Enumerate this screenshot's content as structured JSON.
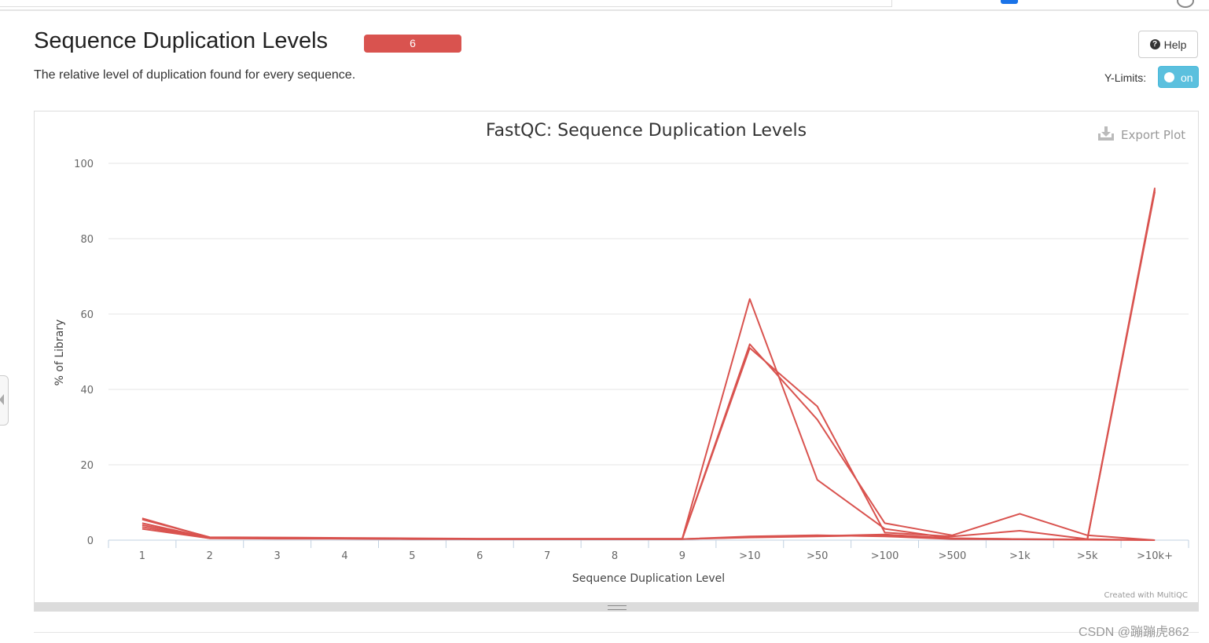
{
  "section": {
    "title": "Sequence Duplication Levels",
    "badge": "6",
    "description": "The relative level of duplication found for every sequence."
  },
  "controls": {
    "help_label": "Help",
    "ylimits_label": "Y-Limits:",
    "toggle_label": "on",
    "export_label": "Export Plot"
  },
  "footer": {
    "credit": "Created with MultiQC",
    "watermark": "CSDN @蹦蹦虎862"
  },
  "colors": {
    "series": "#d9534f",
    "badge": "#d9534f",
    "toggle": "#5bc0de"
  },
  "icons": [
    "help-icon",
    "export-icon",
    "resize-grip-icon",
    "collapse-arrow-icon"
  ],
  "chart_data": {
    "type": "line",
    "title": "FastQC: Sequence Duplication Levels",
    "xlabel": "Sequence Duplication Level",
    "ylabel": "% of Library",
    "categories": [
      "1",
      "2",
      "3",
      "4",
      "5",
      "6",
      "7",
      "8",
      "9",
      ">10",
      ">50",
      ">100",
      ">500",
      ">1k",
      ">5k",
      ">10k+"
    ],
    "yticks": [
      0,
      20,
      40,
      60,
      80,
      100
    ],
    "ylim": [
      0,
      100
    ],
    "grid": true,
    "legend": "none",
    "series": [
      {
        "values": [
          5.5,
          0.8,
          0.7,
          0.6,
          0.5,
          0.4,
          0.4,
          0.4,
          0.4,
          64,
          16,
          3,
          0.5,
          0.3,
          0.1,
          0
        ]
      },
      {
        "values": [
          4,
          0.6,
          0.5,
          0.5,
          0.4,
          0.3,
          0.3,
          0.3,
          0.3,
          52,
          32,
          4.5,
          1.3,
          7,
          1.3,
          0
        ]
      },
      {
        "values": [
          3,
          0.5,
          0.5,
          0.4,
          0.3,
          0.3,
          0.3,
          0.3,
          0.3,
          51,
          35.5,
          2,
          1,
          2.5,
          0.3,
          0
        ]
      },
      {
        "values": [
          5.8,
          0.7,
          0.6,
          0.5,
          0.4,
          0.3,
          0.3,
          0.3,
          0.3,
          1,
          1.3,
          1,
          0.3,
          0.2,
          0.2,
          93
        ]
      },
      {
        "values": [
          4.5,
          0.6,
          0.5,
          0.5,
          0.4,
          0.3,
          0.3,
          0.3,
          0.3,
          0.8,
          1.1,
          1.5,
          0.5,
          0.3,
          0.2,
          93.5
        ]
      },
      {
        "values": [
          3.5,
          0.5,
          0.4,
          0.4,
          0.3,
          0.3,
          0.3,
          0.3,
          0.3,
          0.7,
          1,
          1.3,
          0.4,
          0.2,
          0.1,
          92.5
        ]
      }
    ]
  }
}
